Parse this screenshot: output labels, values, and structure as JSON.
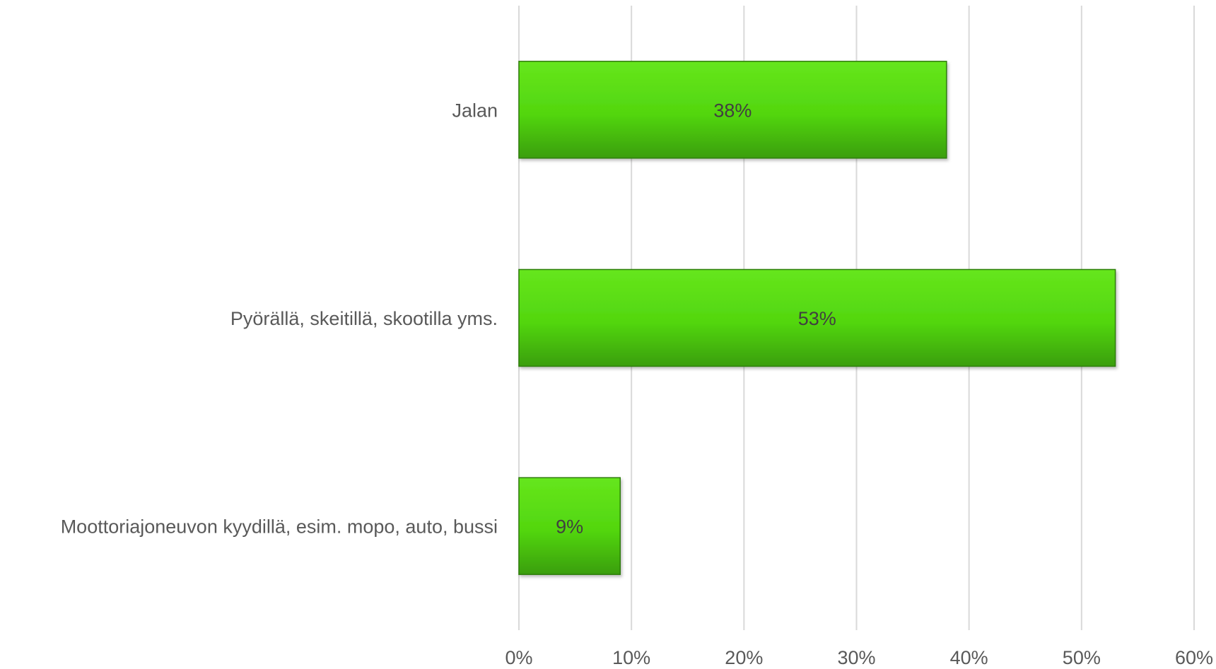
{
  "chart_data": {
    "type": "bar",
    "orientation": "horizontal",
    "categories": [
      "Jalan",
      "Pyörällä, skeitillä, skootilla yms.",
      "Moottoriajoneuvon kyydillä, esim. mopo, auto, bussi"
    ],
    "values": [
      38,
      53,
      9
    ],
    "data_labels": [
      "38%",
      "53%",
      "9%"
    ],
    "x_ticks": [
      "0%",
      "10%",
      "20%",
      "30%",
      "40%",
      "50%",
      "60%"
    ],
    "xlim": [
      0,
      60
    ],
    "title": "",
    "xlabel": "",
    "ylabel": "",
    "grid": "vertical",
    "legend": "none",
    "colors": {
      "bar_light": "#66e61c",
      "bar_mid": "#52d60f",
      "bar_dark": "#3a9e0a",
      "bar_edge": "#2f7d08",
      "grid": "#d9d9d9",
      "text": "#595959"
    }
  }
}
